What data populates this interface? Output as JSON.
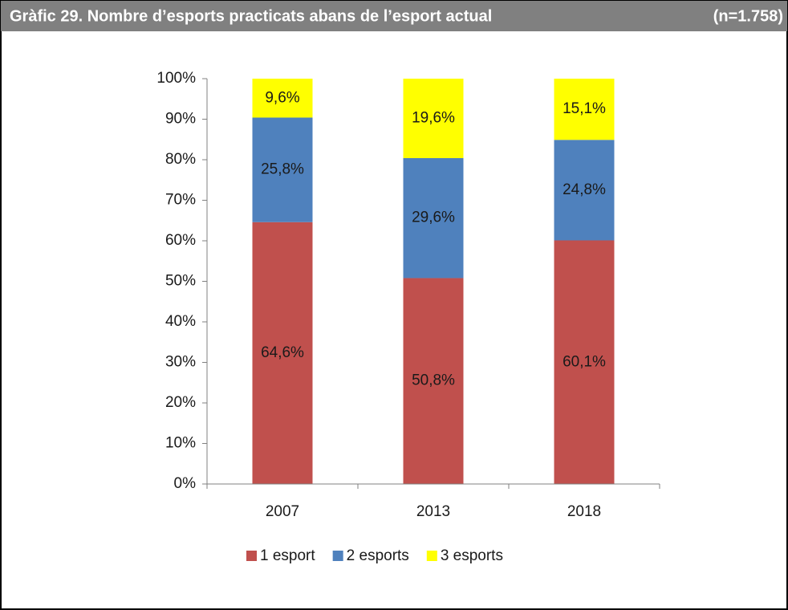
{
  "chart_data": {
    "type": "stacked_bar",
    "title": "Gràfic 29. Nombre d’esports practicats abans de l’esport actual",
    "subtitle": "(n=1.758)",
    "categories": [
      "2007",
      "2013",
      "2018"
    ],
    "series": [
      {
        "name": "1 esport",
        "color": "#c0504d",
        "values": [
          64.6,
          50.8,
          60.1
        ],
        "value_labels": [
          "64,6%",
          "50,8%",
          "60,1%"
        ]
      },
      {
        "name": "2 esports",
        "color": "#4f81bd",
        "values": [
          25.8,
          29.6,
          24.8
        ],
        "value_labels": [
          "25,8%",
          "29,6%",
          "24,8%"
        ]
      },
      {
        "name": "3 esports",
        "color": "#ffff00",
        "values": [
          9.6,
          19.6,
          15.1
        ],
        "value_labels": [
          "9,6%",
          "19,6%",
          "15,1%"
        ]
      }
    ],
    "ylim": [
      0,
      100
    ],
    "yticks": [
      {
        "value": 0,
        "label": "0%"
      },
      {
        "value": 10,
        "label": "10%"
      },
      {
        "value": 20,
        "label": "20%"
      },
      {
        "value": 30,
        "label": "30%"
      },
      {
        "value": 40,
        "label": "40%"
      },
      {
        "value": 50,
        "label": "50%"
      },
      {
        "value": 60,
        "label": "60%"
      },
      {
        "value": 70,
        "label": "70%"
      },
      {
        "value": 80,
        "label": "80%"
      },
      {
        "value": 90,
        "label": "90%"
      },
      {
        "value": 100,
        "label": "100%"
      }
    ],
    "legend": "bottom"
  }
}
